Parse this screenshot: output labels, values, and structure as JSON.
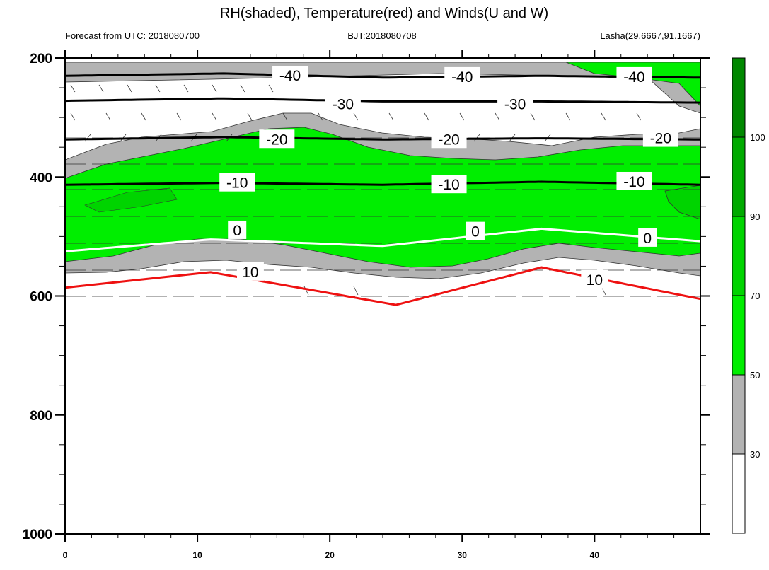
{
  "title": "RH(shaded), Temperature(red) and Winds(U and W)",
  "subtitle_left": "Forecast from UTC: 2018080700",
  "subtitle_center": "BJT:2018080708",
  "subtitle_right": "Lasha(29.6667,91.1667)",
  "chart_data": {
    "type": "contour",
    "x_ticks": [
      0,
      10,
      20,
      30,
      40
    ],
    "xlim": [
      0,
      48
    ],
    "y_ticks": [
      200,
      400,
      600,
      800,
      1000
    ],
    "ylim": [
      1000,
      200
    ],
    "colorbar": {
      "levels": [
        30,
        50,
        70,
        90,
        100
      ],
      "colors": [
        "#ffffff",
        "#b3b3b3",
        "#00ee00",
        "#00d400",
        "#00aa00",
        "#008800"
      ]
    },
    "temperature_contours": [
      {
        "label": "-40",
        "color": "black",
        "points": [
          [
            0,
            230
          ],
          [
            12,
            226
          ],
          [
            24,
            233
          ],
          [
            36,
            230
          ],
          [
            48,
            233
          ]
        ],
        "labels_at": [
          [
            17,
            230
          ],
          [
            30,
            232
          ],
          [
            43,
            232
          ]
        ]
      },
      {
        "label": "-30",
        "color": "black",
        "points": [
          [
            0,
            272
          ],
          [
            12,
            268
          ],
          [
            24,
            273
          ],
          [
            36,
            273
          ],
          [
            48,
            275
          ]
        ],
        "labels_at": [
          [
            21,
            278
          ],
          [
            34,
            278
          ]
        ]
      },
      {
        "label": "-20",
        "color": "black",
        "points": [
          [
            0,
            337
          ],
          [
            12,
            333
          ],
          [
            24,
            337
          ],
          [
            36,
            335
          ],
          [
            48,
            337
          ]
        ],
        "labels_at": [
          [
            16,
            337
          ],
          [
            29,
            337
          ],
          [
            45,
            335
          ]
        ]
      },
      {
        "label": "-10",
        "color": "black",
        "points": [
          [
            0,
            413
          ],
          [
            12,
            410
          ],
          [
            24,
            413
          ],
          [
            36,
            408
          ],
          [
            48,
            413
          ]
        ],
        "labels_at": [
          [
            13,
            410
          ],
          [
            29,
            413
          ],
          [
            43,
            408
          ]
        ]
      },
      {
        "label": "0",
        "color": "white",
        "points": [
          [
            0,
            525
          ],
          [
            11,
            505
          ],
          [
            24,
            516
          ],
          [
            36,
            487
          ],
          [
            48,
            508
          ]
        ],
        "labels_at": [
          [
            13,
            490
          ],
          [
            31,
            492
          ],
          [
            44,
            503
          ]
        ]
      },
      {
        "label": "10",
        "color": "red",
        "points": [
          [
            0,
            586
          ],
          [
            11,
            560
          ],
          [
            25,
            615
          ],
          [
            36,
            552
          ],
          [
            48,
            605
          ]
        ],
        "labels_at": [
          [
            14,
            560
          ],
          [
            40,
            573
          ]
        ]
      }
    ]
  }
}
